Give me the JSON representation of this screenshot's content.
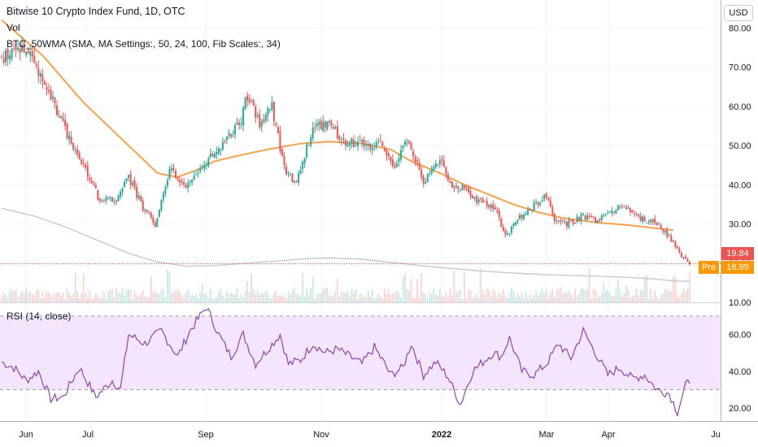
{
  "header": {
    "title": "Bitwise 10 Crypto Index Fund, 1D, OTC",
    "volume_label": "Vol",
    "indicator_label": "BTC_50WMA (SMA, MA Settings:, 50, 24, 100, Fib Scales:, 34)",
    "rsi_label": "RSI (14, close)",
    "currency": "USD"
  },
  "badges": {
    "last_price": "19.84",
    "pre_label": "Pre",
    "pre_price": "18.99"
  },
  "colors": {
    "up": "#26a69a",
    "down": "#ef5350",
    "ma_orange": "#f7a14a",
    "ma_gray": "#c8c8c8",
    "rsi_line": "#8e44ad",
    "rsi_band": "#f3e5fc",
    "badge_red": "#ef5350",
    "badge_orange": "#ff9800"
  },
  "chart_data": [
    {
      "type": "candlestick",
      "price_axis": {
        "ticks": [
          "80.00",
          "70.00",
          "60.00",
          "50.00",
          "40.00",
          "30.00",
          "20.00",
          "10.00"
        ],
        "ylim": [
          10,
          83
        ]
      },
      "x_axis": {
        "ticks": [
          "Jun",
          "Jul",
          "Sep",
          "Nov",
          "2022",
          "Mar",
          "Apr",
          "Ju"
        ],
        "bold_ticks": [
          "2022"
        ]
      },
      "last_price_line": 19.84,
      "pre_market_price": 18.99,
      "close_anchors": [
        [
          0,
          72
        ],
        [
          10,
          75
        ],
        [
          20,
          68
        ],
        [
          30,
          55
        ],
        [
          40,
          45
        ],
        [
          48,
          36
        ],
        [
          56,
          36
        ],
        [
          62,
          42
        ],
        [
          70,
          33
        ],
        [
          75,
          30
        ],
        [
          82,
          44
        ],
        [
          90,
          40
        ],
        [
          100,
          46
        ],
        [
          110,
          52
        ],
        [
          116,
          55
        ],
        [
          120,
          63
        ],
        [
          126,
          55
        ],
        [
          132,
          60
        ],
        [
          138,
          44
        ],
        [
          144,
          40
        ],
        [
          152,
          55
        ],
        [
          160,
          55
        ],
        [
          168,
          51
        ],
        [
          178,
          50
        ],
        [
          186,
          51
        ],
        [
          192,
          44
        ],
        [
          198,
          52
        ],
        [
          206,
          41
        ],
        [
          214,
          46
        ],
        [
          220,
          40
        ],
        [
          226,
          39
        ],
        [
          232,
          36
        ],
        [
          238,
          35
        ],
        [
          242,
          33
        ],
        [
          246,
          27
        ],
        [
          252,
          31
        ],
        [
          258,
          34
        ],
        [
          266,
          37
        ],
        [
          270,
          31
        ],
        [
          276,
          30
        ],
        [
          284,
          32
        ],
        [
          290,
          31
        ],
        [
          296,
          32
        ],
        [
          302,
          35
        ],
        [
          308,
          33
        ],
        [
          314,
          31
        ],
        [
          320,
          30
        ],
        [
          324,
          28
        ],
        [
          328,
          25
        ],
        [
          332,
          22
        ],
        [
          336,
          19.84
        ]
      ],
      "series": [
        {
          "name": "BTC_50WMA",
          "color": "#f7a14a",
          "points": [
            [
              0,
              82
            ],
            [
              20,
              73
            ],
            [
              40,
              61
            ],
            [
              60,
              51
            ],
            [
              70,
              46
            ],
            [
              76,
              43
            ],
            [
              80,
              42.5
            ],
            [
              86,
              42
            ],
            [
              94,
              43.5
            ],
            [
              104,
              46
            ],
            [
              116,
              47.5
            ],
            [
              130,
              49
            ],
            [
              146,
              50.5
            ],
            [
              160,
              51
            ],
            [
              176,
              50.5
            ],
            [
              190,
              49
            ],
            [
              200,
              46
            ],
            [
              214,
              43
            ],
            [
              226,
              40
            ],
            [
              238,
              37.5
            ],
            [
              250,
              35
            ],
            [
              262,
              33
            ],
            [
              274,
              31.5
            ],
            [
              284,
              30.8
            ],
            [
              292,
              30.3
            ],
            [
              304,
              29.8
            ],
            [
              318,
              29
            ],
            [
              328,
              28.4
            ]
          ]
        },
        {
          "name": "200-day average",
          "color": "#c8c8c8",
          "points": [
            [
              0,
              34
            ],
            [
              16,
              32
            ],
            [
              30,
              29.5
            ],
            [
              46,
              26
            ],
            [
              62,
              22.5
            ],
            [
              76,
              20.3
            ],
            [
              90,
              19.2
            ],
            [
              104,
              19.4
            ],
            [
              120,
              20
            ],
            [
              136,
              20.6
            ],
            [
              150,
              21.2
            ],
            [
              162,
              21.3
            ],
            [
              176,
              21
            ],
            [
              190,
              20.2
            ],
            [
              204,
              19.4
            ],
            [
              218,
              18.7
            ],
            [
              232,
              18.1
            ],
            [
              246,
              17.6
            ],
            [
              260,
              17.2
            ],
            [
              274,
              16.9
            ],
            [
              290,
              16.7
            ],
            [
              304,
              16.4
            ],
            [
              318,
              16
            ],
            [
              328,
              15.5
            ],
            [
              336,
              15.3
            ]
          ]
        }
      ]
    },
    {
      "type": "line",
      "name": "RSI (14, close)",
      "y_axis": {
        "ticks": [
          "60.00",
          "40.00",
          "20.00"
        ],
        "ylim": [
          13,
          77
        ],
        "band": [
          30,
          70
        ]
      },
      "anchors": [
        [
          0,
          45
        ],
        [
          6,
          42
        ],
        [
          12,
          35
        ],
        [
          18,
          40
        ],
        [
          24,
          25
        ],
        [
          30,
          26
        ],
        [
          38,
          42
        ],
        [
          46,
          26
        ],
        [
          54,
          35
        ],
        [
          58,
          30
        ],
        [
          62,
          60
        ],
        [
          70,
          55
        ],
        [
          78,
          62
        ],
        [
          86,
          48
        ],
        [
          92,
          62
        ],
        [
          100,
          75
        ],
        [
          106,
          60
        ],
        [
          112,
          48
        ],
        [
          118,
          60
        ],
        [
          124,
          44
        ],
        [
          130,
          52
        ],
        [
          136,
          60
        ],
        [
          140,
          44
        ],
        [
          146,
          46
        ],
        [
          152,
          55
        ],
        [
          158,
          50
        ],
        [
          164,
          52
        ],
        [
          170,
          48
        ],
        [
          176,
          44
        ],
        [
          182,
          53
        ],
        [
          186,
          46
        ],
        [
          190,
          38
        ],
        [
          196,
          42
        ],
        [
          200,
          55
        ],
        [
          206,
          38
        ],
        [
          212,
          45
        ],
        [
          218,
          37
        ],
        [
          224,
          22
        ],
        [
          230,
          40
        ],
        [
          236,
          46
        ],
        [
          240,
          50
        ],
        [
          244,
          48
        ],
        [
          248,
          58
        ],
        [
          254,
          40
        ],
        [
          260,
          38
        ],
        [
          266,
          44
        ],
        [
          272,
          55
        ],
        [
          278,
          47
        ],
        [
          284,
          62
        ],
        [
          290,
          50
        ],
        [
          296,
          38
        ],
        [
          302,
          42
        ],
        [
          308,
          36
        ],
        [
          314,
          38
        ],
        [
          320,
          30
        ],
        [
          326,
          28
        ],
        [
          330,
          18
        ],
        [
          334,
          32
        ],
        [
          336,
          35
        ]
      ]
    }
  ]
}
